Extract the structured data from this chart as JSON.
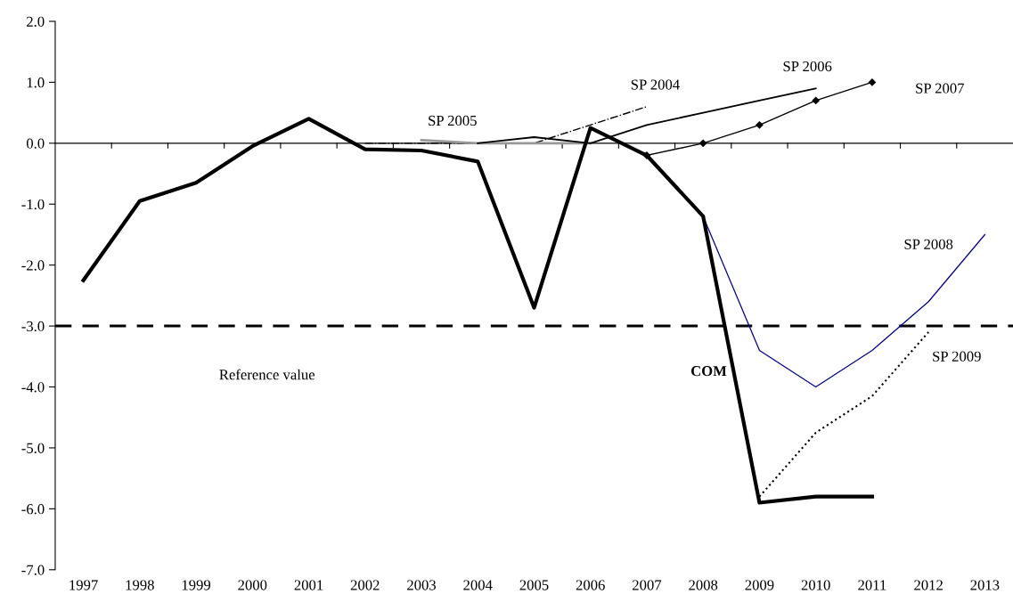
{
  "chart_data": {
    "type": "line",
    "categories": [
      "1997",
      "1998",
      "1999",
      "2000",
      "2001",
      "2002",
      "2003",
      "2004",
      "2005",
      "2006",
      "2007",
      "2008",
      "2009",
      "2010",
      "2011",
      "2012",
      "2013"
    ],
    "series": [
      {
        "name": "COM",
        "color": "#000000",
        "line_style": "solid",
        "marker": "none",
        "values": [
          -2.25,
          -0.95,
          -0.65,
          -0.05,
          0.4,
          -0.1,
          -0.12,
          -0.3,
          -2.7,
          0.25,
          -0.2,
          -1.2,
          -5.9,
          -5.8,
          -5.8,
          null,
          null
        ]
      },
      {
        "name": "SP 2004",
        "color": "#000000",
        "line_style": "dashdot",
        "marker": "none",
        "values": [
          null,
          null,
          null,
          null,
          null,
          0.0,
          0.0,
          0.0,
          0.0,
          0.3,
          0.6,
          null,
          null,
          null,
          null,
          null,
          null
        ]
      },
      {
        "name": "SP 2005",
        "color": "#999999",
        "line_style": "solid",
        "marker": "none",
        "values": [
          null,
          null,
          null,
          null,
          null,
          null,
          0.05,
          0.0,
          0.0,
          0.0,
          null,
          null,
          null,
          null,
          null,
          null,
          null
        ]
      },
      {
        "name": "SP 2006",
        "color": "#000000",
        "line_style": "solid",
        "marker": "none",
        "values": [
          null,
          null,
          null,
          null,
          null,
          null,
          null,
          0.0,
          0.1,
          0.0,
          0.3,
          0.5,
          0.7,
          0.9,
          null,
          null,
          null
        ]
      },
      {
        "name": "SP 2007",
        "color": "#000000",
        "line_style": "solid",
        "marker": "diamond",
        "values": [
          null,
          null,
          null,
          null,
          null,
          null,
          null,
          null,
          null,
          null,
          -0.2,
          0.0,
          0.3,
          0.7,
          1.0,
          null,
          null
        ]
      },
      {
        "name": "SP 2008",
        "color": "#00008b",
        "line_style": "solid",
        "marker": "none",
        "values": [
          null,
          null,
          null,
          null,
          null,
          null,
          null,
          null,
          null,
          null,
          -0.2,
          -1.2,
          -3.4,
          -4.0,
          -3.4,
          -2.6,
          -1.5
        ]
      },
      {
        "name": "SP 2009",
        "color": "#000000",
        "line_style": "dotted",
        "marker": "none",
        "values": [
          null,
          null,
          null,
          null,
          null,
          null,
          null,
          null,
          null,
          null,
          null,
          null,
          -5.8,
          -4.75,
          -4.15,
          -3.1,
          null
        ]
      }
    ],
    "ylim": [
      -7.0,
      2.0
    ],
    "yticks": [
      {
        "value": -7,
        "label": "-7.0"
      },
      {
        "value": -6,
        "label": "-6.0"
      },
      {
        "value": -5,
        "label": "-5.0"
      },
      {
        "value": -4,
        "label": "-4.0"
      },
      {
        "value": -3,
        "label": "-3.0"
      },
      {
        "value": -2,
        "label": "-2.0"
      },
      {
        "value": -1,
        "label": "-1.0"
      },
      {
        "value": 0,
        "label": "0.0"
      },
      {
        "value": 1,
        "label": "1.0"
      },
      {
        "value": 2,
        "label": "2.0"
      }
    ],
    "ref_lines": [
      {
        "axis": "y",
        "value": -3.0,
        "label": "Reference value",
        "color": "#000000",
        "line_style": "dashed"
      }
    ],
    "grid": false,
    "legend": false
  }
}
